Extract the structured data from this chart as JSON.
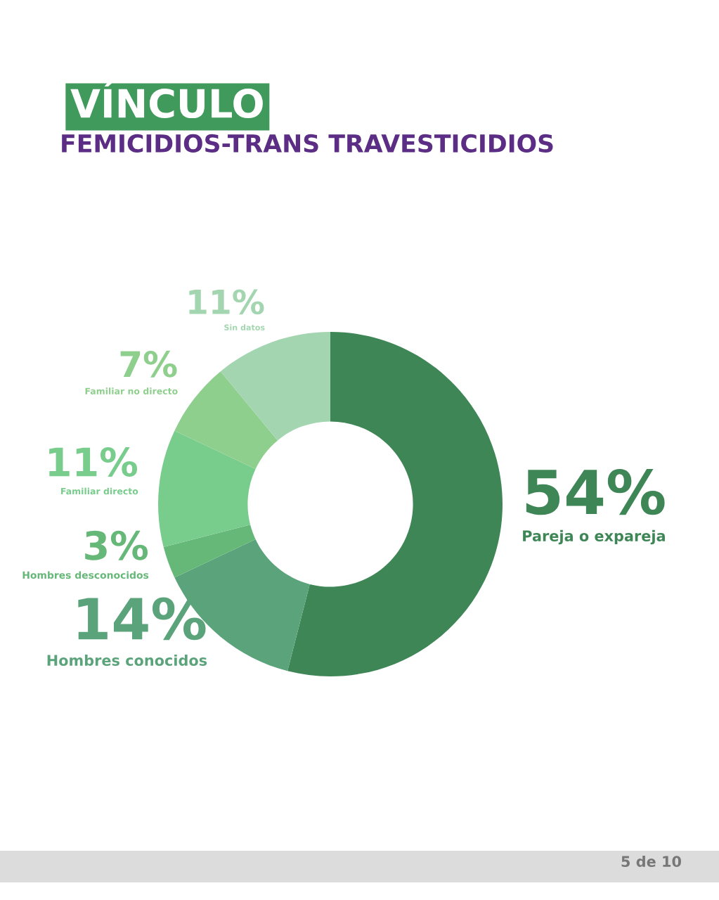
{
  "chart_data": {
    "type": "donut",
    "title": "VÍNCULO",
    "subtitle": "FEMICIDIOS-TRANS TRAVESTICIDIOS",
    "categories": [
      "Pareja o expareja",
      "Hombres conocidos",
      "Hombres desconocidos",
      "Familiar directo",
      "Familiar no directo",
      "Sin datos"
    ],
    "values": [
      54,
      14,
      3,
      11,
      7,
      11
    ],
    "colors": [
      "#3f8657",
      "#5ba37a",
      "#66b878",
      "#78cc8c",
      "#8fcf8e",
      "#a3d6b0"
    ],
    "value_labels": [
      "54%",
      "14%",
      "3%",
      "11%",
      "7%",
      "11%"
    ],
    "annotations": [
      "5 de 10"
    ]
  }
}
